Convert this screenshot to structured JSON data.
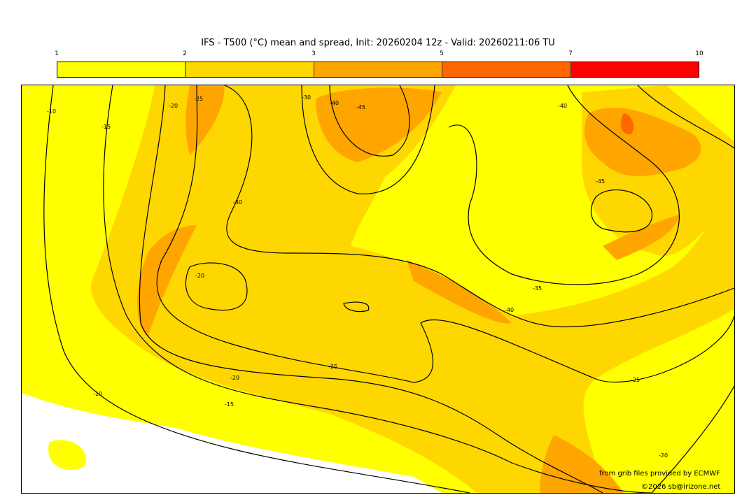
{
  "title": "IFS - T500 (°C) mean and spread, Init: 20260204 12z - Valid: 20260211:06 TU",
  "colorbar": {
    "ticks": [
      "1",
      "2",
      "3",
      "5",
      "7",
      "10"
    ],
    "colors": [
      "#ffff00",
      "#ffd700",
      "#ffa500",
      "#ff6600",
      "#ff0000"
    ]
  },
  "map": {
    "contour_labels": [
      "-10",
      "-15",
      "-20",
      "-25",
      "-30",
      "-40",
      "-45",
      "-40",
      "-45",
      "-30",
      "-20",
      "-35",
      "-40",
      "-25",
      "-20",
      "-15",
      "-10",
      "-25",
      "-20"
    ]
  },
  "credits": {
    "source": "from grib files provided by ECMWF",
    "copyright": "©2026 sb@irizone.net"
  }
}
